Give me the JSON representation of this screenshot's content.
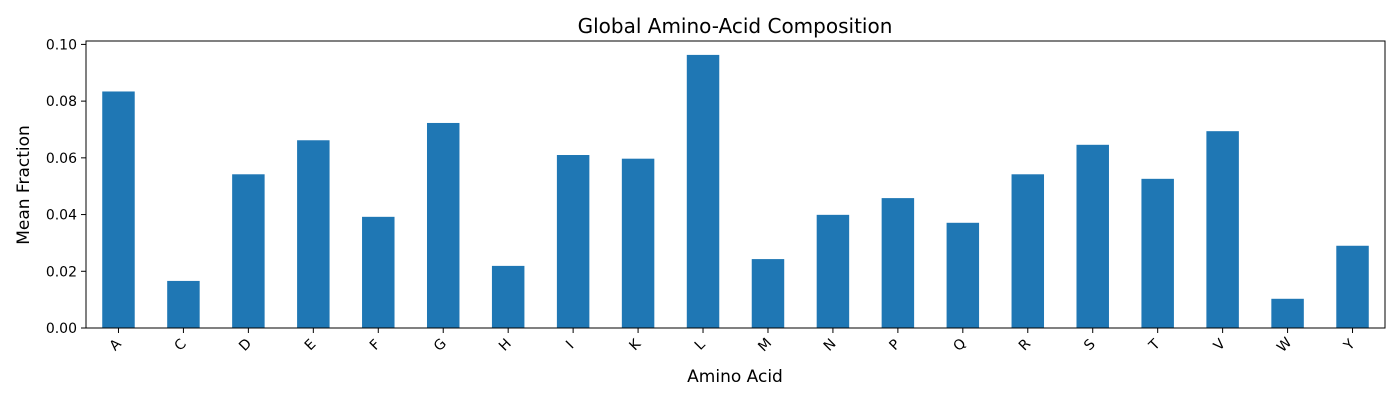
{
  "chart_data": {
    "type": "bar",
    "title": "Global Amino-Acid Composition",
    "xlabel": "Amino Acid",
    "ylabel": "Mean Fraction",
    "categories": [
      "A",
      "C",
      "D",
      "E",
      "F",
      "G",
      "H",
      "I",
      "K",
      "L",
      "M",
      "N",
      "P",
      "Q",
      "R",
      "S",
      "T",
      "V",
      "W",
      "Y"
    ],
    "values": [
      0.0834,
      0.0166,
      0.0542,
      0.0662,
      0.0392,
      0.0723,
      0.0219,
      0.061,
      0.0597,
      0.0963,
      0.0243,
      0.0399,
      0.0458,
      0.0371,
      0.0542,
      0.0646,
      0.0526,
      0.0694,
      0.0103,
      0.029
    ],
    "ylim": [
      0,
      0.1012
    ],
    "yticks": [
      0.0,
      0.02,
      0.04,
      0.06,
      0.08,
      0.1
    ],
    "ytick_labels": [
      "0.00",
      "0.02",
      "0.04",
      "0.06",
      "0.08",
      "0.10"
    ],
    "bar_color": "#1f77b4",
    "grid": false,
    "legend": "none"
  }
}
